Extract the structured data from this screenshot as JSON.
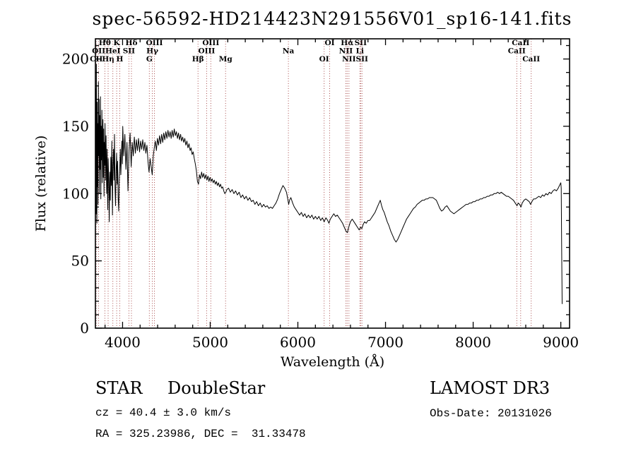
{
  "title": "spec-56592-HD214423N291556V01_sp16-141.fits",
  "footer": {
    "object_class": "STAR",
    "object_subclass": "DoubleStar",
    "survey": "LAMOST DR3",
    "cz": "cz = 40.4 ± 3.0 km/s",
    "obs_date": "Obs-Date: 20131026",
    "coordinates": "RA = 325.23986, DEC =  31.33478"
  },
  "chart_data": {
    "type": "line",
    "title": "spec-56592-HD214423N291556V01_sp16-141.fits",
    "xlabel": "Wavelength (Å)",
    "ylabel": "Flux (relative)",
    "xlim": [
      3690,
      9100
    ],
    "ylim": [
      0,
      215
    ],
    "x_ticks": [
      4000,
      5000,
      6000,
      7000,
      8000,
      9000
    ],
    "y_ticks": [
      0,
      50,
      100,
      150,
      200
    ],
    "x_minor_step": 200,
    "y_minor_step": 10,
    "grid": false,
    "legend": false,
    "line_color": "#000000",
    "marker_color": "#a03a3a",
    "spectral_lines": [
      {
        "label": "CII",
        "wavelength": 3700,
        "row": 3
      },
      {
        "label": "OII",
        "wavelength": 3727,
        "row": 2
      },
      {
        "label": "Hθ",
        "wavelength": 3798,
        "row": 1
      },
      {
        "label": "Hη",
        "wavelength": 3835,
        "row": 3
      },
      {
        "label": "HeI",
        "wavelength": 3889,
        "row": 2
      },
      {
        "label": "K",
        "wavelength": 3933,
        "row": 1
      },
      {
        "label": "H",
        "wavelength": 3968,
        "row": 3
      },
      {
        "label": "SII",
        "wavelength": 4072,
        "row": 2
      },
      {
        "label": "Hδ",
        "wavelength": 4101,
        "row": 1
      },
      {
        "label": "G",
        "wavelength": 4305,
        "row": 3
      },
      {
        "label": "Hγ",
        "wavelength": 4340,
        "row": 2
      },
      {
        "label": "OIII",
        "wavelength": 4363,
        "row": 1
      },
      {
        "label": "Hβ",
        "wavelength": 4861,
        "row": 3
      },
      {
        "label": "OIII",
        "wavelength": 4959,
        "row": 2
      },
      {
        "label": "OIII",
        "wavelength": 5007,
        "row": 1
      },
      {
        "label": "Mg",
        "wavelength": 5175,
        "row": 3
      },
      {
        "label": "Na",
        "wavelength": 5892,
        "row": 2
      },
      {
        "label": "OI",
        "wavelength": 6300,
        "row": 3
      },
      {
        "label": "OI",
        "wavelength": 6363,
        "row": 1
      },
      {
        "label": "NII",
        "wavelength": 6548,
        "row": 2
      },
      {
        "label": "Hα",
        "wavelength": 6563,
        "row": 1
      },
      {
        "label": "NII",
        "wavelength": 6583,
        "row": 3
      },
      {
        "label": "Li",
        "wavelength": 6708,
        "row": 2
      },
      {
        "label": "SII",
        "wavelength": 6716,
        "row": 1
      },
      {
        "label": "SII",
        "wavelength": 6731,
        "row": 3
      },
      {
        "label": "CaII",
        "wavelength": 8498,
        "row": 2
      },
      {
        "label": "CaII",
        "wavelength": 8542,
        "row": 1
      },
      {
        "label": "CaII",
        "wavelength": 8662,
        "row": 3
      }
    ],
    "spectrum_points": [
      [
        3692,
        100
      ],
      [
        3695,
        178
      ],
      [
        3698,
        85
      ],
      [
        3701,
        196
      ],
      [
        3704,
        120
      ],
      [
        3707,
        78
      ],
      [
        3710,
        168
      ],
      [
        3713,
        105
      ],
      [
        3716,
        152
      ],
      [
        3720,
        92
      ],
      [
        3724,
        183
      ],
      [
        3728,
        128
      ],
      [
        3732,
        170
      ],
      [
        3736,
        100
      ],
      [
        3740,
        158
      ],
      [
        3744,
        118
      ],
      [
        3748,
        172
      ],
      [
        3752,
        96
      ],
      [
        3756,
        150
      ],
      [
        3760,
        125
      ],
      [
        3764,
        162
      ],
      [
        3768,
        108
      ],
      [
        3772,
        142
      ],
      [
        3776,
        155
      ],
      [
        3780,
        112
      ],
      [
        3784,
        148
      ],
      [
        3788,
        98
      ],
      [
        3792,
        138
      ],
      [
        3796,
        121
      ],
      [
        3800,
        152
      ],
      [
        3806,
        110
      ],
      [
        3812,
        143
      ],
      [
        3818,
        100
      ],
      [
        3824,
        133
      ],
      [
        3830,
        88
      ],
      [
        3836,
        126
      ],
      [
        3842,
        108
      ],
      [
        3848,
        79
      ],
      [
        3854,
        116
      ],
      [
        3860,
        95
      ],
      [
        3866,
        127
      ],
      [
        3872,
        106
      ],
      [
        3878,
        139
      ],
      [
        3884,
        84
      ],
      [
        3890,
        121
      ],
      [
        3896,
        133
      ],
      [
        3902,
        110
      ],
      [
        3908,
        144
      ],
      [
        3914,
        104
      ],
      [
        3920,
        91
      ],
      [
        3926,
        117
      ],
      [
        3932,
        130
      ],
      [
        3938,
        107
      ],
      [
        3944,
        124
      ],
      [
        3950,
        97
      ],
      [
        3956,
        87
      ],
      [
        3962,
        107
      ],
      [
        3968,
        119
      ],
      [
        3974,
        133
      ],
      [
        3980,
        114
      ],
      [
        3986,
        127
      ],
      [
        3992,
        139
      ],
      [
        3998,
        122
      ],
      [
        4002,
        150
      ],
      [
        4014,
        128
      ],
      [
        4026,
        144
      ],
      [
        4038,
        118
      ],
      [
        4050,
        138
      ],
      [
        4062,
        102
      ],
      [
        4074,
        132
      ],
      [
        4086,
        145
      ],
      [
        4098,
        120
      ],
      [
        4110,
        138
      ],
      [
        4122,
        128
      ],
      [
        4134,
        142
      ],
      [
        4146,
        130
      ],
      [
        4158,
        140
      ],
      [
        4170,
        132
      ],
      [
        4182,
        141
      ],
      [
        4194,
        131
      ],
      [
        4206,
        139
      ],
      [
        4218,
        133
      ],
      [
        4230,
        140
      ],
      [
        4242,
        132
      ],
      [
        4254,
        138
      ],
      [
        4266,
        130
      ],
      [
        4278,
        136
      ],
      [
        4290,
        124
      ],
      [
        4302,
        116
      ],
      [
        4314,
        126
      ],
      [
        4326,
        120
      ],
      [
        4338,
        114
      ],
      [
        4350,
        128
      ],
      [
        4362,
        134
      ],
      [
        4374,
        139
      ],
      [
        4386,
        132
      ],
      [
        4398,
        141
      ],
      [
        4410,
        136
      ],
      [
        4422,
        143
      ],
      [
        4434,
        137
      ],
      [
        4446,
        144
      ],
      [
        4458,
        138
      ],
      [
        4470,
        145
      ],
      [
        4482,
        140
      ],
      [
        4494,
        146
      ],
      [
        4506,
        141
      ],
      [
        4518,
        147
      ],
      [
        4530,
        142
      ],
      [
        4542,
        146
      ],
      [
        4554,
        141
      ],
      [
        4566,
        147
      ],
      [
        4578,
        142
      ],
      [
        4590,
        148
      ],
      [
        4602,
        143
      ],
      [
        4614,
        146
      ],
      [
        4626,
        141
      ],
      [
        4638,
        145
      ],
      [
        4650,
        140
      ],
      [
        4662,
        144
      ],
      [
        4674,
        139
      ],
      [
        4686,
        142
      ],
      [
        4698,
        138
      ],
      [
        4710,
        141
      ],
      [
        4722,
        136
      ],
      [
        4734,
        139
      ],
      [
        4746,
        134
      ],
      [
        4758,
        137
      ],
      [
        4770,
        132
      ],
      [
        4782,
        134
      ],
      [
        4794,
        129
      ],
      [
        4806,
        131
      ],
      [
        4818,
        126
      ],
      [
        4830,
        122
      ],
      [
        4842,
        117
      ],
      [
        4854,
        109
      ],
      [
        4866,
        107
      ],
      [
        4878,
        114
      ],
      [
        4890,
        111
      ],
      [
        4902,
        116
      ],
      [
        4914,
        112
      ],
      [
        4926,
        115
      ],
      [
        4938,
        111
      ],
      [
        4950,
        114
      ],
      [
        4962,
        110
      ],
      [
        4974,
        113
      ],
      [
        4986,
        109
      ],
      [
        4998,
        112
      ],
      [
        5010,
        109
      ],
      [
        5022,
        111
      ],
      [
        5034,
        108
      ],
      [
        5046,
        110
      ],
      [
        5058,
        107
      ],
      [
        5070,
        109
      ],
      [
        5082,
        106
      ],
      [
        5094,
        108
      ],
      [
        5106,
        105
      ],
      [
        5118,
        107
      ],
      [
        5130,
        104
      ],
      [
        5142,
        105
      ],
      [
        5154,
        102
      ],
      [
        5166,
        100
      ],
      [
        5178,
        101
      ],
      [
        5190,
        103
      ],
      [
        5210,
        104
      ],
      [
        5230,
        101
      ],
      [
        5250,
        103
      ],
      [
        5270,
        100
      ],
      [
        5290,
        102
      ],
      [
        5310,
        99
      ],
      [
        5330,
        101
      ],
      [
        5350,
        97
      ],
      [
        5370,
        99
      ],
      [
        5390,
        96
      ],
      [
        5410,
        98
      ],
      [
        5430,
        95
      ],
      [
        5450,
        97
      ],
      [
        5470,
        94
      ],
      [
        5490,
        95
      ],
      [
        5510,
        92
      ],
      [
        5530,
        94
      ],
      [
        5550,
        91
      ],
      [
        5570,
        93
      ],
      [
        5590,
        90
      ],
      [
        5610,
        92
      ],
      [
        5630,
        90
      ],
      [
        5650,
        91
      ],
      [
        5670,
        89
      ],
      [
        5690,
        90
      ],
      [
        5710,
        89
      ],
      [
        5730,
        91
      ],
      [
        5750,
        93
      ],
      [
        5770,
        96
      ],
      [
        5790,
        100
      ],
      [
        5810,
        103
      ],
      [
        5830,
        106
      ],
      [
        5850,
        104
      ],
      [
        5870,
        101
      ],
      [
        5885,
        96
      ],
      [
        5895,
        92
      ],
      [
        5905,
        95
      ],
      [
        5920,
        97
      ],
      [
        5940,
        93
      ],
      [
        5960,
        90
      ],
      [
        5980,
        88
      ],
      [
        6000,
        86
      ],
      [
        6020,
        84
      ],
      [
        6040,
        86
      ],
      [
        6060,
        83
      ],
      [
        6080,
        85
      ],
      [
        6100,
        82
      ],
      [
        6120,
        84
      ],
      [
        6140,
        82
      ],
      [
        6160,
        84
      ],
      [
        6180,
        81
      ],
      [
        6200,
        83
      ],
      [
        6220,
        81
      ],
      [
        6240,
        83
      ],
      [
        6260,
        80
      ],
      [
        6280,
        82
      ],
      [
        6300,
        79
      ],
      [
        6320,
        82
      ],
      [
        6340,
        80
      ],
      [
        6355,
        78
      ],
      [
        6370,
        81
      ],
      [
        6390,
        83
      ],
      [
        6410,
        85
      ],
      [
        6430,
        83
      ],
      [
        6450,
        84
      ],
      [
        6470,
        82
      ],
      [
        6490,
        80
      ],
      [
        6510,
        78
      ],
      [
        6530,
        75
      ],
      [
        6550,
        72
      ],
      [
        6565,
        71
      ],
      [
        6580,
        75
      ],
      [
        6600,
        79
      ],
      [
        6620,
        81
      ],
      [
        6640,
        79
      ],
      [
        6660,
        77
      ],
      [
        6680,
        75
      ],
      [
        6700,
        73
      ],
      [
        6715,
        75
      ],
      [
        6730,
        74
      ],
      [
        6745,
        77
      ],
      [
        6760,
        79
      ],
      [
        6780,
        78
      ],
      [
        6800,
        80
      ],
      [
        6820,
        80
      ],
      [
        6840,
        82
      ],
      [
        6860,
        84
      ],
      [
        6880,
        86
      ],
      [
        6900,
        89
      ],
      [
        6920,
        92
      ],
      [
        6940,
        95
      ],
      [
        6955,
        91
      ],
      [
        6970,
        88
      ],
      [
        6985,
        86
      ],
      [
        7000,
        83
      ],
      [
        7020,
        79
      ],
      [
        7040,
        76
      ],
      [
        7060,
        72
      ],
      [
        7080,
        69
      ],
      [
        7100,
        66
      ],
      [
        7120,
        64
      ],
      [
        7140,
        66
      ],
      [
        7160,
        69
      ],
      [
        7180,
        72
      ],
      [
        7200,
        75
      ],
      [
        7220,
        78
      ],
      [
        7240,
        81
      ],
      [
        7260,
        83
      ],
      [
        7280,
        85
      ],
      [
        7300,
        87
      ],
      [
        7320,
        89
      ],
      [
        7340,
        90
      ],
      [
        7360,
        92
      ],
      [
        7380,
        93
      ],
      [
        7400,
        94
      ],
      [
        7420,
        95
      ],
      [
        7440,
        95
      ],
      [
        7460,
        96
      ],
      [
        7480,
        96
      ],
      [
        7500,
        97
      ],
      [
        7520,
        97
      ],
      [
        7540,
        97
      ],
      [
        7560,
        96
      ],
      [
        7580,
        95
      ],
      [
        7600,
        92
      ],
      [
        7620,
        89
      ],
      [
        7640,
        87
      ],
      [
        7660,
        88
      ],
      [
        7680,
        90
      ],
      [
        7700,
        91
      ],
      [
        7720,
        89
      ],
      [
        7740,
        87
      ],
      [
        7760,
        86
      ],
      [
        7780,
        85
      ],
      [
        7800,
        86
      ],
      [
        7820,
        87
      ],
      [
        7840,
        88
      ],
      [
        7860,
        89
      ],
      [
        7880,
        90
      ],
      [
        7900,
        91
      ],
      [
        7920,
        92
      ],
      [
        7940,
        92
      ],
      [
        7960,
        93
      ],
      [
        7980,
        93
      ],
      [
        8000,
        94
      ],
      [
        8020,
        94
      ],
      [
        8040,
        95
      ],
      [
        8060,
        95
      ],
      [
        8080,
        96
      ],
      [
        8100,
        96
      ],
      [
        8120,
        97
      ],
      [
        8140,
        97
      ],
      [
        8160,
        98
      ],
      [
        8180,
        98
      ],
      [
        8200,
        99
      ],
      [
        8220,
        99
      ],
      [
        8240,
        100
      ],
      [
        8260,
        100
      ],
      [
        8280,
        101
      ],
      [
        8300,
        100
      ],
      [
        8320,
        101
      ],
      [
        8340,
        100
      ],
      [
        8360,
        99
      ],
      [
        8380,
        98
      ],
      [
        8400,
        98
      ],
      [
        8420,
        97
      ],
      [
        8440,
        96
      ],
      [
        8460,
        95
      ],
      [
        8480,
        93
      ],
      [
        8500,
        91
      ],
      [
        8515,
        93
      ],
      [
        8530,
        92
      ],
      [
        8545,
        90
      ],
      [
        8560,
        93
      ],
      [
        8580,
        95
      ],
      [
        8600,
        96
      ],
      [
        8620,
        95
      ],
      [
        8640,
        94
      ],
      [
        8655,
        92
      ],
      [
        8670,
        94
      ],
      [
        8690,
        96
      ],
      [
        8710,
        96
      ],
      [
        8730,
        97
      ],
      [
        8750,
        98
      ],
      [
        8770,
        97
      ],
      [
        8790,
        99
      ],
      [
        8810,
        98
      ],
      [
        8830,
        100
      ],
      [
        8850,
        99
      ],
      [
        8870,
        101
      ],
      [
        8890,
        100
      ],
      [
        8910,
        102
      ],
      [
        8930,
        103
      ],
      [
        8950,
        102
      ],
      [
        8970,
        104
      ],
      [
        8985,
        106
      ],
      [
        9000,
        108
      ],
      [
        9005,
        104
      ],
      [
        9010,
        60
      ],
      [
        9015,
        18
      ]
    ]
  }
}
